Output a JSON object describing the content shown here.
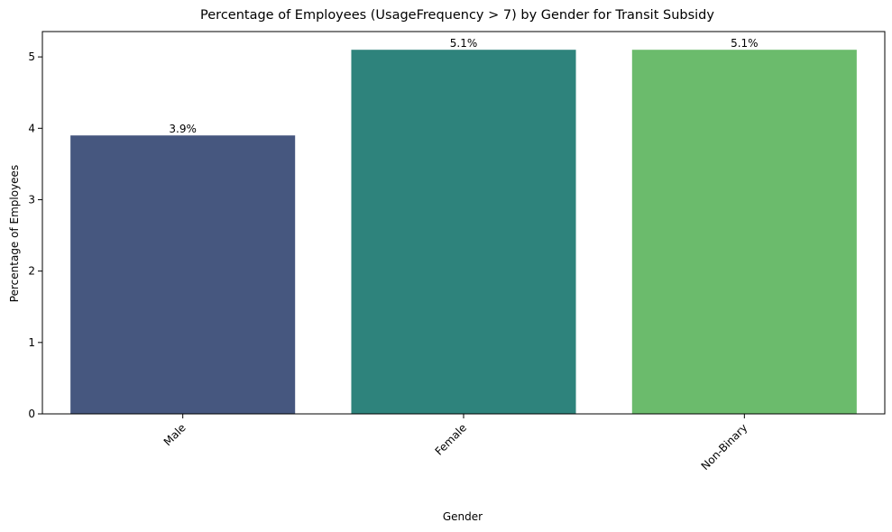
{
  "chart_data": {
    "type": "bar",
    "title": "Percentage of Employees (UsageFrequency > 7) by Gender for Transit Subsidy",
    "xlabel": "Gender",
    "ylabel": "Percentage of Employees",
    "categories": [
      "Male",
      "Female",
      "Non-Binary"
    ],
    "values": [
      3.9,
      5.1,
      5.1
    ],
    "data_labels": [
      "3.9%",
      "5.1%",
      "5.1%"
    ],
    "colors": [
      "#46577f",
      "#2e837c",
      "#6bbb6c"
    ],
    "ylim": [
      0,
      5.355
    ],
    "yticks": [
      0,
      1,
      2,
      3,
      4,
      5
    ],
    "grid": false,
    "legend": "none",
    "xtick_rotation": "45 degrees"
  }
}
